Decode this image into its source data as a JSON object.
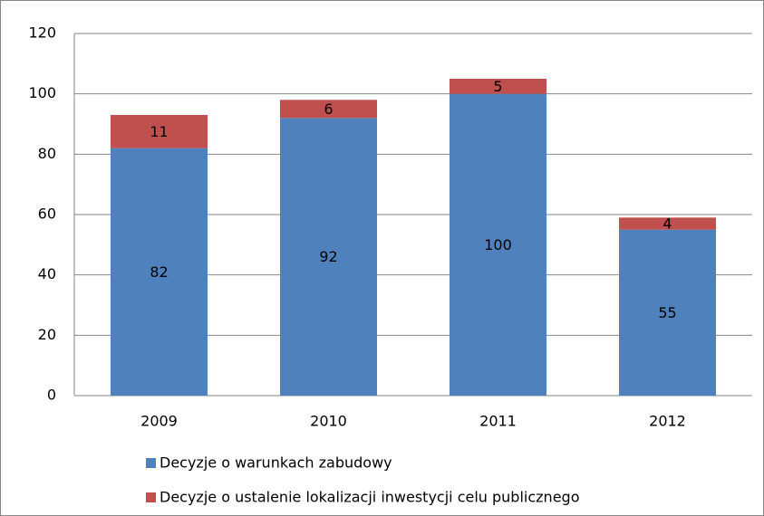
{
  "chart_data": {
    "type": "bar",
    "stacked": true,
    "categories": [
      "2009",
      "2010",
      "2011",
      "2012"
    ],
    "series": [
      {
        "name": "Decyzje o warunkach zabudowy",
        "color": "#4f81bd",
        "values": [
          82,
          92,
          100,
          55
        ]
      },
      {
        "name": "Decyzje o ustalenie lokalizacji inwestycji celu publicznego",
        "color": "#c0504d",
        "values": [
          11,
          6,
          5,
          4
        ]
      }
    ],
    "ylim": [
      0,
      120
    ],
    "yticks": [
      0,
      20,
      40,
      60,
      80,
      100,
      120
    ],
    "grid": true,
    "legend": "bottom"
  }
}
